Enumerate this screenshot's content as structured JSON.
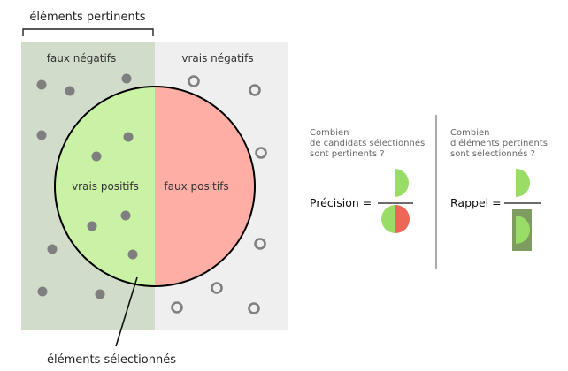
{
  "labels": {
    "relevant_elements": "éléments pertinents",
    "false_negatives": "faux négatifs",
    "true_negatives": "vrais négatifs",
    "true_positives": "vrais positifs",
    "false_positives": "faux positifs",
    "selected_elements": "éléments sélectionnés"
  },
  "precision": {
    "question_line1": "Combien",
    "question_line2": "de candidats sélectionnés",
    "question_line3": "sont pertinents ?",
    "formula_label": "Précision ="
  },
  "recall": {
    "question_line1": "Combien",
    "question_line2": "d'éléments pertinents",
    "question_line3": "sont sélectionnés ?",
    "formula_label": "Rappel ="
  },
  "colors": {
    "relevant_bg": "#d1dccb",
    "irrelevant_bg": "#efefef",
    "true_positive": "#c9f2a5",
    "false_positive": "#ffaea6",
    "tp_icon": "#99dd66",
    "fp_icon": "#ee6655",
    "fn_icon": "#7f9c60",
    "dot": "#7f7f7f"
  }
}
